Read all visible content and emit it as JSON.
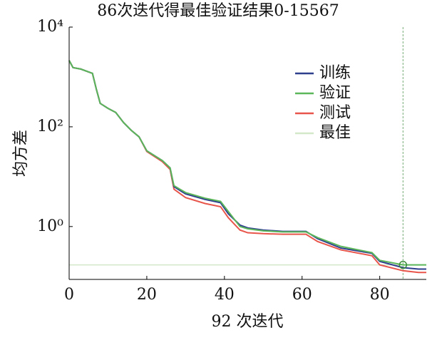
{
  "chart_data": {
    "type": "line",
    "title": "86次迭代得最佳验证结果0-15567",
    "xlabel": "92 次迭代",
    "ylabel": "均方差",
    "log_y": true,
    "xlim": [
      0,
      92
    ],
    "ylim": [
      0.087,
      10000
    ],
    "xticks": [
      0,
      20,
      40,
      60,
      80
    ],
    "yticks": [
      {
        "value": 1,
        "label": "10⁰"
      },
      {
        "value": 100,
        "label": "10²"
      },
      {
        "value": 10000,
        "label": "10⁴"
      }
    ],
    "x": [
      0,
      1,
      3,
      6,
      7,
      8,
      10,
      12,
      14,
      16,
      18,
      20,
      24,
      26,
      27,
      30,
      35,
      39,
      41,
      44,
      46,
      50,
      55,
      61,
      64,
      70,
      78,
      80,
      86,
      90,
      92
    ],
    "series": [
      {
        "name": "训练",
        "color": "#2e3f8e",
        "values": [
          2140,
          1540,
          1440,
          1180,
          570,
          295,
          235,
          194,
          122,
          85,
          63,
          33,
          21,
          15,
          6.3,
          4.5,
          3.5,
          3.0,
          1.8,
          1.07,
          0.94,
          0.85,
          0.8,
          0.8,
          0.57,
          0.37,
          0.29,
          0.2,
          0.15,
          0.14,
          0.14
        ]
      },
      {
        "name": "验证",
        "color": "#5cb65a",
        "values": [
          2140,
          1540,
          1440,
          1180,
          570,
          295,
          235,
          194,
          122,
          85,
          63,
          33,
          21,
          15,
          6.6,
          4.8,
          3.7,
          3.2,
          2.0,
          1.0,
          0.9,
          0.82,
          0.78,
          0.78,
          0.6,
          0.4,
          0.3,
          0.21,
          0.17,
          0.17,
          0.17
        ]
      },
      {
        "name": "测试",
        "color": "#e8554b",
        "values": [
          2140,
          1540,
          1440,
          1180,
          570,
          295,
          235,
          194,
          122,
          85,
          63,
          32,
          20,
          14,
          5.6,
          3.8,
          2.9,
          2.5,
          1.5,
          0.85,
          0.75,
          0.72,
          0.7,
          0.7,
          0.5,
          0.34,
          0.26,
          0.17,
          0.13,
          0.12,
          0.12
        ]
      }
    ],
    "best": {
      "name": "最佳",
      "color": "#d3e8c8",
      "marker_color": "#3c8a3c",
      "x": 86,
      "y": 0.17
    }
  }
}
